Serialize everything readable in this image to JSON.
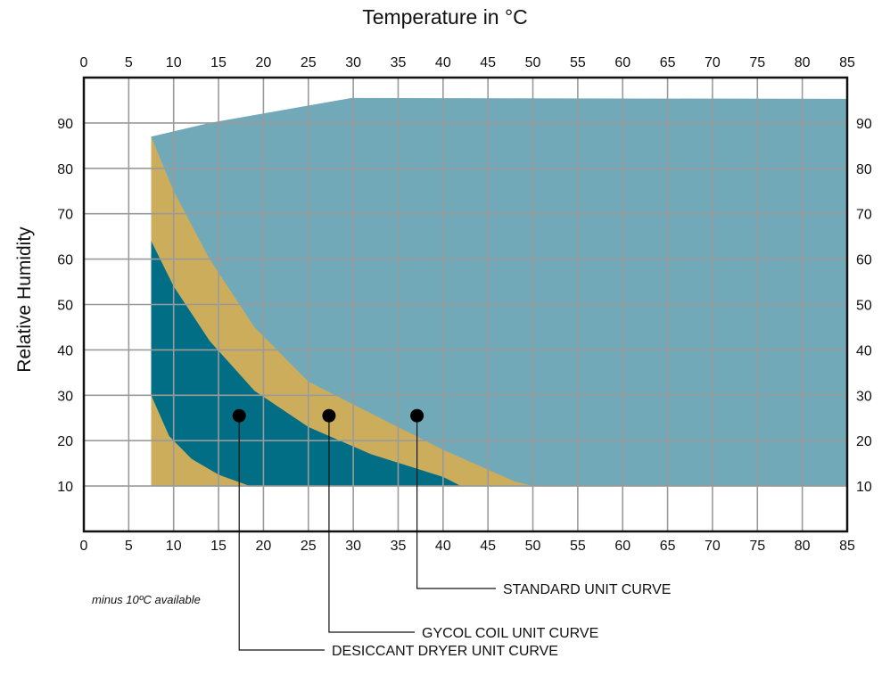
{
  "chart_data": {
    "type": "area",
    "title": "Temperature in °C",
    "xlabel": "",
    "ylabel": "Relative Humidity",
    "xlim": [
      0,
      85
    ],
    "ylim": [
      0,
      100
    ],
    "x_ticks": [
      0,
      5,
      10,
      15,
      20,
      25,
      30,
      35,
      40,
      45,
      50,
      55,
      60,
      65,
      70,
      75,
      80,
      85
    ],
    "y_ticks": [
      10,
      20,
      30,
      40,
      50,
      60,
      70,
      80,
      90
    ],
    "grid": true,
    "regions": [
      {
        "key": "standard",
        "color": "#72a9b9",
        "points": [
          [
            7.5,
            87
          ],
          [
            14,
            90
          ],
          [
            29.8,
            95.5
          ],
          [
            85,
            95.3
          ],
          [
            85,
            10
          ],
          [
            7.5,
            10
          ]
        ]
      },
      {
        "key": "glycol",
        "color": "#ccad5c",
        "points": [
          [
            7.5,
            87
          ],
          [
            10,
            75
          ],
          [
            14,
            60
          ],
          [
            19,
            45
          ],
          [
            25,
            33
          ],
          [
            32,
            26
          ],
          [
            40,
            18
          ],
          [
            48,
            11
          ],
          [
            50,
            10
          ],
          [
            7.5,
            10
          ]
        ]
      },
      {
        "key": "desiccant",
        "color": "#016e85",
        "points": [
          [
            7.5,
            64
          ],
          [
            10,
            54
          ],
          [
            14,
            42
          ],
          [
            19,
            31
          ],
          [
            25,
            23
          ],
          [
            32,
            17
          ],
          [
            40,
            12
          ],
          [
            42,
            10
          ],
          [
            18.5,
            10
          ],
          [
            15,
            12.5
          ],
          [
            12,
            16
          ],
          [
            9.5,
            21
          ],
          [
            7.5,
            30
          ]
        ]
      }
    ],
    "markers": [
      {
        "x": 17.3,
        "y": 25.5,
        "label": "DESICCANT DRYER UNIT CURVE"
      },
      {
        "x": 27.3,
        "y": 25.5,
        "label": "GYCOL COIL UNIT CURVE"
      },
      {
        "x": 37.1,
        "y": 25.5,
        "label": "STANDARD UNIT CURVE"
      }
    ],
    "annotations": [
      "minus 10ºC available"
    ]
  }
}
